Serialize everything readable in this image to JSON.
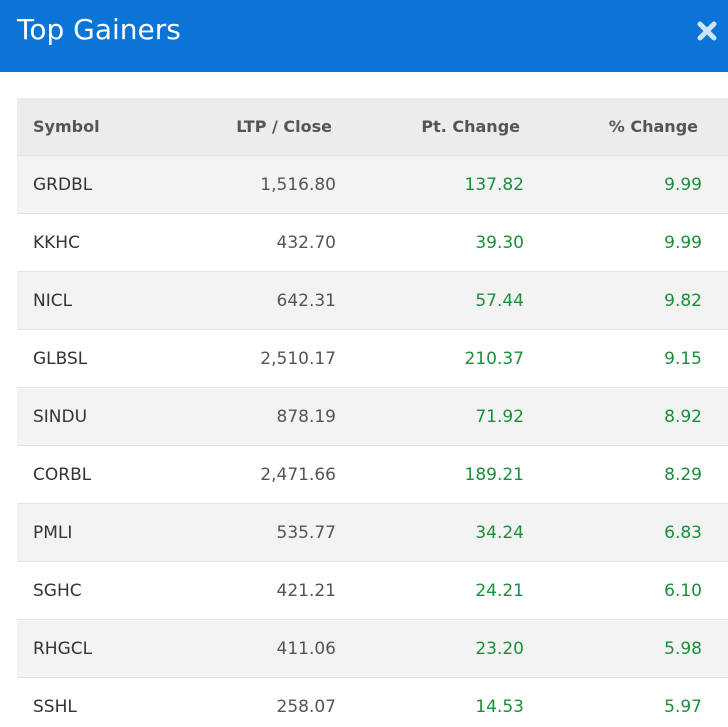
{
  "header": {
    "title": "Top Gainers"
  },
  "table": {
    "columns": [
      "Symbol",
      "LTP / Close",
      "Pt. Change",
      "% Change"
    ],
    "rows": [
      [
        "GRDBL",
        "1,516.80",
        "137.82",
        "9.99"
      ],
      [
        "KKHC",
        "432.70",
        "39.30",
        "9.99"
      ],
      [
        "NICL",
        "642.31",
        "57.44",
        "9.82"
      ],
      [
        "GLBSL",
        "2,510.17",
        "210.37",
        "9.15"
      ],
      [
        "SINDU",
        "878.19",
        "71.92",
        "8.92"
      ],
      [
        "CORBL",
        "2,471.66",
        "189.21",
        "8.29"
      ],
      [
        "PMLI",
        "535.77",
        "34.24",
        "6.83"
      ],
      [
        "SGHC",
        "421.21",
        "24.21",
        "6.10"
      ],
      [
        "RHGCL",
        "411.06",
        "23.20",
        "5.98"
      ],
      [
        "SSHL",
        "258.07",
        "14.53",
        "5.97"
      ]
    ]
  }
}
